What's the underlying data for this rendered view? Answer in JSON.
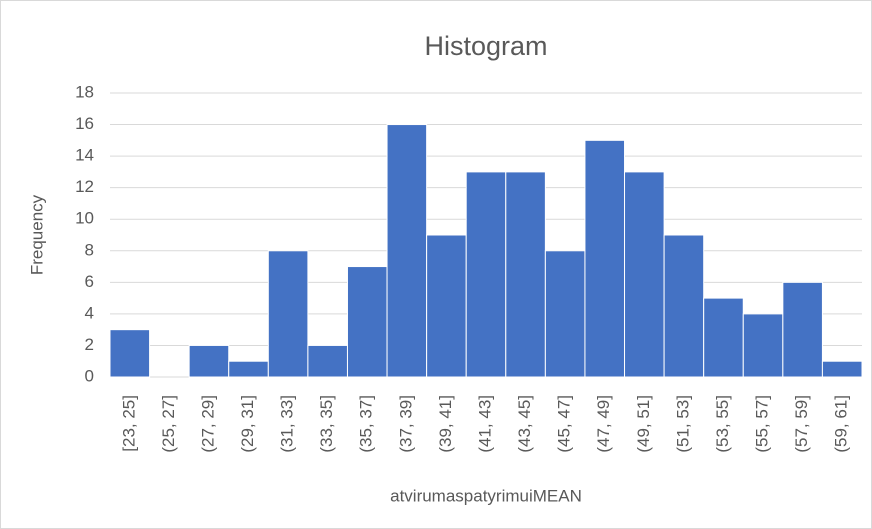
{
  "chart_data": {
    "type": "bar",
    "title": "Histogram",
    "x_label": "atvirumaspatyrimuiMEAN",
    "y_label": "Frequency",
    "categories": [
      "[23, 25]",
      "(25, 27]",
      "(27, 29]",
      "(29, 31]",
      "(31, 33]",
      "(33, 35]",
      "(35, 37]",
      "(37, 39]",
      "(39, 41]",
      "(41, 43]",
      "(43, 45]",
      "(45, 47]",
      "(47, 49]",
      "(49, 51]",
      "(51, 53]",
      "(53, 55]",
      "(55, 57]",
      "(57, 59]",
      "(59, 61]"
    ],
    "values": [
      3,
      0,
      2,
      1,
      8,
      2,
      7,
      16,
      9,
      13,
      13,
      8,
      15,
      13,
      9,
      5,
      4,
      6,
      1
    ],
    "color": "#4472c4",
    "ylim": [
      0,
      18
    ],
    "yticks": [
      0,
      2,
      4,
      6,
      8,
      10,
      12,
      14,
      16,
      18
    ],
    "grid": true
  }
}
